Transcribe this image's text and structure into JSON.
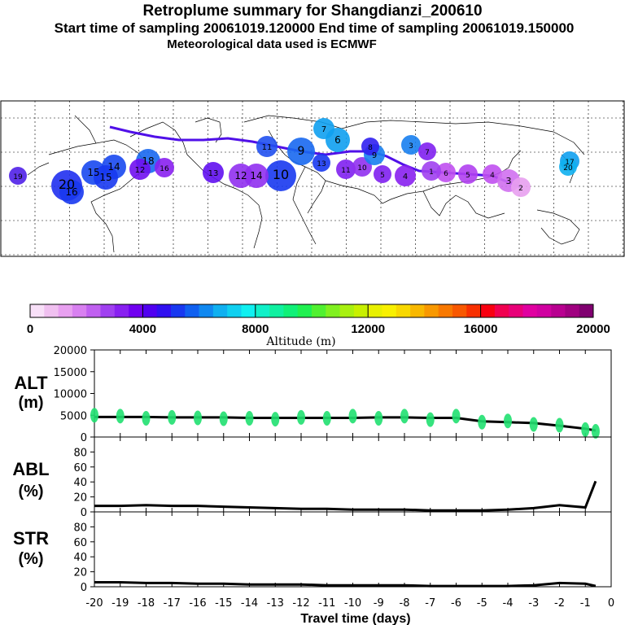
{
  "header": {
    "title": "Retroplume summary for Shangdianzi_200610",
    "sampling": "Start time of sampling 20061019.120000     End time of sampling 20061019.150000",
    "meteo": "Meteorological data used is ECMWF"
  },
  "colorbar": {
    "label": "Altitude (m)",
    "ticks": [
      "0",
      "4000",
      "8000",
      "12000",
      "16000",
      "20000"
    ],
    "colors": [
      "#f8e0f8",
      "#f0c0f0",
      "#e8a0f0",
      "#d880f0",
      "#c060f0",
      "#a040f0",
      "#8820f0",
      "#7000f0",
      "#5000f0",
      "#3010f0",
      "#1838f0",
      "#1060f0",
      "#1088f0",
      "#10b0f0",
      "#10d0f0",
      "#10f0f0",
      "#10f0c8",
      "#10f0a0",
      "#10f078",
      "#20f050",
      "#50f030",
      "#80f020",
      "#a8f010",
      "#c8f000",
      "#e8f000",
      "#f8f000",
      "#f8d800",
      "#f8b800",
      "#f89800",
      "#f87800",
      "#f85800",
      "#f83000",
      "#f80010",
      "#f00050",
      "#e80078",
      "#e000a0",
      "#d000a0",
      "#b80090",
      "#a00080",
      "#800070"
    ]
  },
  "chart_data": [
    {
      "type": "line",
      "name": "ALT",
      "title": "ALT (m)",
      "ylabel": "(m)",
      "xlabel": "Travel time (days)",
      "ylim": [
        0,
        20000
      ],
      "yticks": [
        "20000",
        "15000",
        "10000",
        "5000",
        "0"
      ],
      "x": [
        -20,
        -19,
        -18,
        -17,
        -16,
        -15,
        -14,
        -13,
        -12,
        -11,
        -10,
        -9,
        -8,
        -7,
        -6,
        -5,
        -4,
        -3,
        -2,
        -1,
        -0.6
      ],
      "series": [
        {
          "name": "mean altitude",
          "values": [
            4600,
            4600,
            4600,
            4500,
            4500,
            4500,
            4400,
            4400,
            4400,
            4400,
            4400,
            4500,
            4500,
            4400,
            4400,
            3600,
            3400,
            3200,
            2600,
            1900,
            1500
          ]
        },
        {
          "name": "particle clusters",
          "values": [
            5000,
            4800,
            4300,
            4500,
            4400,
            4200,
            4300,
            4100,
            4500,
            4300,
            4800,
            4300,
            4800,
            4000,
            4800,
            3400,
            3700,
            2900,
            2700,
            1700,
            1300
          ]
        }
      ]
    },
    {
      "type": "line",
      "name": "ABL",
      "title": "ABL (%)",
      "ylabel": "(%)",
      "ylim": [
        0,
        100
      ],
      "yticks": [
        "80",
        "60",
        "40",
        "20",
        "0"
      ],
      "x": [
        -20,
        -19,
        -18,
        -17,
        -16,
        -15,
        -14,
        -13,
        -12,
        -11,
        -10,
        -9,
        -8,
        -7,
        -6,
        -5,
        -4,
        -3,
        -2,
        -1,
        -0.6
      ],
      "series": [
        {
          "name": "fraction in ABL",
          "values": [
            8,
            8,
            9,
            8,
            8,
            7,
            6,
            5,
            4,
            4,
            3,
            3,
            3,
            2,
            2,
            2,
            3,
            5,
            9,
            6,
            41
          ]
        }
      ]
    },
    {
      "type": "line",
      "name": "STR",
      "title": "STR (%)",
      "ylabel": "(%)",
      "ylim": [
        0,
        100
      ],
      "yticks": [
        "80",
        "60",
        "40",
        "20",
        "0"
      ],
      "xticks": [
        "-20",
        "-19",
        "-18",
        "-17",
        "-16",
        "-15",
        "-14",
        "-13",
        "-12",
        "-11",
        "-10",
        "-9",
        "-8",
        "-7",
        "-6",
        "-5",
        "-4",
        "-3",
        "-2",
        "-1",
        "0"
      ],
      "x": [
        -20,
        -19,
        -18,
        -17,
        -16,
        -15,
        -14,
        -13,
        -12,
        -11,
        -10,
        -9,
        -8,
        -7,
        -6,
        -5,
        -4,
        -3,
        -2,
        -1,
        -0.6
      ],
      "series": [
        {
          "name": "fraction in stratosphere",
          "values": [
            6,
            6,
            5,
            5,
            4,
            4,
            3,
            3,
            3,
            2,
            2,
            2,
            2,
            1,
            1,
            1,
            1,
            2,
            5,
            4,
            1
          ]
        }
      ]
    }
  ],
  "map": {
    "plume_labels": [
      "20",
      "19",
      "18",
      "17",
      "16",
      "15",
      "14",
      "13",
      "12",
      "11",
      "10",
      "9",
      "8",
      "7",
      "6",
      "5",
      "4",
      "3",
      "2",
      "1"
    ],
    "cluster_labels": [
      {
        "text": "19"
      },
      {
        "text": "20"
      },
      {
        "text": "16"
      },
      {
        "text": "15"
      },
      {
        "text": "14"
      },
      {
        "text": "18"
      },
      {
        "text": "16"
      },
      {
        "text": "13"
      },
      {
        "text": "12"
      },
      {
        "text": "10"
      },
      {
        "text": "14"
      },
      {
        "text": "13"
      },
      {
        "text": "11"
      },
      {
        "text": "10"
      },
      {
        "text": "9"
      },
      {
        "text": "7"
      },
      {
        "text": "6"
      },
      {
        "text": "5"
      },
      {
        "text": "4"
      },
      {
        "text": "3"
      },
      {
        "text": "12"
      },
      {
        "text": "11"
      },
      {
        "text": "9"
      },
      {
        "text": "8"
      },
      {
        "text": "7"
      },
      {
        "text": "6"
      },
      {
        "text": "5"
      },
      {
        "text": "4"
      },
      {
        "text": "3"
      },
      {
        "text": "2"
      },
      {
        "text": "1"
      },
      {
        "text": "17"
      },
      {
        "text": "20"
      },
      {
        "text": "15"
      }
    ]
  }
}
